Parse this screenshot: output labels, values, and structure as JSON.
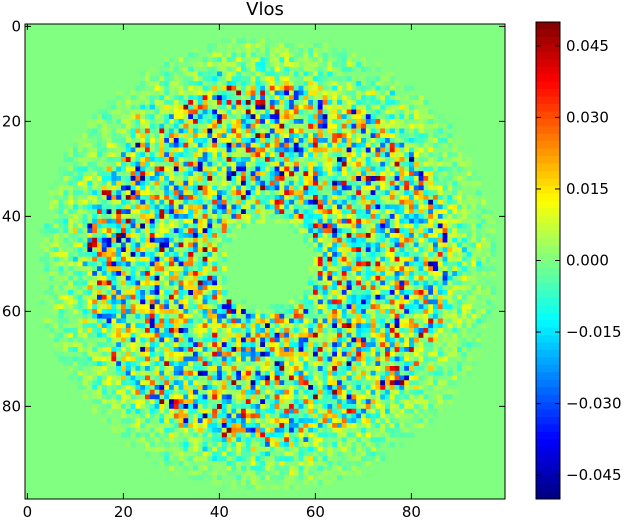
{
  "chart_data": {
    "type": "heatmap",
    "title": "Vlos",
    "xlabel": "",
    "ylabel": "",
    "x_ticks": [
      0,
      20,
      40,
      60,
      80
    ],
    "y_ticks": [
      0,
      20,
      40,
      60,
      80
    ],
    "xlim": [
      -0.5,
      99.5
    ],
    "ylim": [
      99.5,
      -0.5
    ],
    "grid_size": [
      100,
      100
    ],
    "colormap": "jet",
    "color_range": [
      -0.05,
      0.05
    ],
    "colorbar_ticks": [
      "0.045",
      "0.030",
      "0.015",
      "0.000",
      "−0.015",
      "−0.030",
      "−0.045"
    ],
    "colorbar_tick_values": [
      0.045,
      0.03,
      0.015,
      0.0,
      -0.015,
      -0.03,
      -0.045
    ],
    "background_value": 0.0,
    "structure": "noisy annulus of values centered near (50, 50); inner calm disc radius ~10, speckled ring from radius ~10 to ~38, faint fringe to ~48, uniform 0 outside",
    "grid": false,
    "legend": "none"
  }
}
